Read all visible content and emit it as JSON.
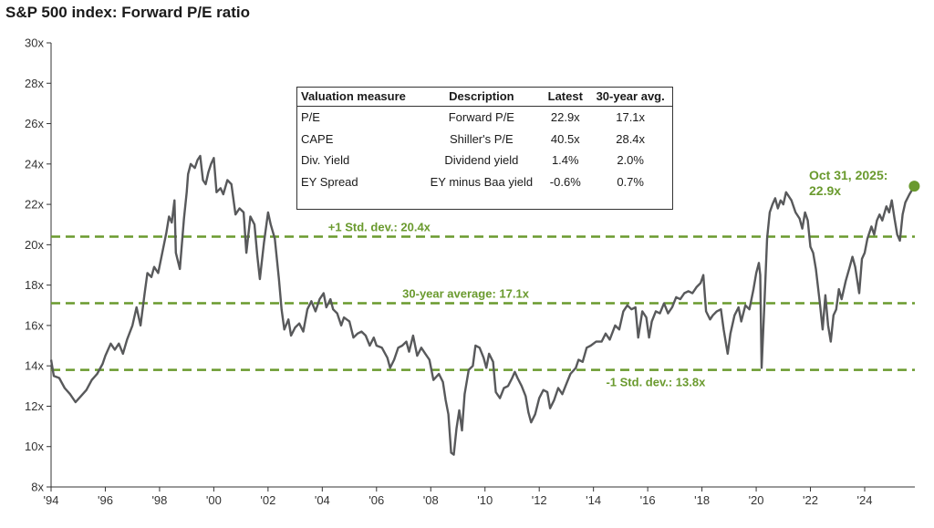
{
  "title": "S&P 500 index: Forward P/E ratio",
  "table": {
    "headers": [
      "Valuation measure",
      "Description",
      "Latest",
      "30-year avg."
    ],
    "rows": [
      [
        "P/E",
        "Forward P/E",
        "22.9x",
        "17.1x"
      ],
      [
        "CAPE",
        "Shiller's P/E",
        "40.5x",
        "28.4x"
      ],
      [
        "Div. Yield",
        "Dividend yield",
        "1.4%",
        "2.0%"
      ],
      [
        "EY Spread",
        "EY minus Baa yield",
        "-0.6%",
        "0.7%"
      ]
    ]
  },
  "callout": {
    "line1": "Oct 31, 2025:",
    "line2": "22.9x"
  },
  "colors": {
    "series": "#58595b",
    "reference": "#6a9a2e",
    "axis": "#333333"
  },
  "chart_data": {
    "type": "line",
    "title": "S&P 500 index: Forward P/E ratio",
    "xlim": [
      1994,
      2025.85
    ],
    "ylim": [
      8,
      30
    ],
    "x_ticks": [
      1994,
      1996,
      1998,
      2000,
      2002,
      2004,
      2006,
      2008,
      2010,
      2012,
      2014,
      2016,
      2018,
      2020,
      2022,
      2024
    ],
    "x_tick_labels": [
      "'94",
      "'96",
      "'98",
      "'00",
      "'02",
      "'04",
      "'06",
      "'08",
      "'10",
      "'12",
      "'14",
      "'16",
      "'18",
      "'20",
      "'22",
      "'24"
    ],
    "y_ticks": [
      8,
      10,
      12,
      14,
      16,
      18,
      20,
      22,
      24,
      26,
      28,
      30
    ],
    "y_tick_labels": [
      "8x",
      "10x",
      "12x",
      "14x",
      "16x",
      "18x",
      "20x",
      "22x",
      "24x",
      "26x",
      "28x",
      "30x"
    ],
    "grid": false,
    "reference_lines": [
      {
        "label": "+1 Std. dev.: 20.4x",
        "value": 20.4
      },
      {
        "label": "30-year average: 17.1x",
        "value": 17.1
      },
      {
        "label": "-1 Std. dev.: 13.8x",
        "value": 13.8
      }
    ],
    "series": [
      {
        "points": [
          [
            1994.0,
            14.3
          ],
          [
            1994.1,
            13.5
          ],
          [
            1994.3,
            13.4
          ],
          [
            1994.5,
            12.9
          ],
          [
            1994.7,
            12.6
          ],
          [
            1994.9,
            12.2
          ],
          [
            1995.1,
            12.5
          ],
          [
            1995.3,
            12.8
          ],
          [
            1995.5,
            13.3
          ],
          [
            1995.7,
            13.6
          ],
          [
            1995.9,
            14.1
          ],
          [
            1996.0,
            14.5
          ],
          [
            1996.2,
            15.1
          ],
          [
            1996.35,
            14.8
          ],
          [
            1996.5,
            15.1
          ],
          [
            1996.65,
            14.6
          ],
          [
            1996.8,
            15.3
          ],
          [
            1997.0,
            16.0
          ],
          [
            1997.15,
            16.9
          ],
          [
            1997.3,
            16.0
          ],
          [
            1997.45,
            17.6
          ],
          [
            1997.55,
            18.6
          ],
          [
            1997.7,
            18.4
          ],
          [
            1997.8,
            18.9
          ],
          [
            1997.95,
            18.6
          ],
          [
            1998.1,
            19.6
          ],
          [
            1998.25,
            20.6
          ],
          [
            1998.35,
            21.4
          ],
          [
            1998.45,
            21.1
          ],
          [
            1998.55,
            22.2
          ],
          [
            1998.6,
            19.6
          ],
          [
            1998.75,
            18.8
          ],
          [
            1998.9,
            21.3
          ],
          [
            1999.0,
            22.6
          ],
          [
            1999.05,
            23.5
          ],
          [
            1999.15,
            24.0
          ],
          [
            1999.3,
            23.8
          ],
          [
            1999.4,
            24.2
          ],
          [
            1999.5,
            24.4
          ],
          [
            1999.6,
            23.2
          ],
          [
            1999.7,
            23.0
          ],
          [
            1999.8,
            23.6
          ],
          [
            1999.9,
            24.0
          ],
          [
            2000.0,
            24.3
          ],
          [
            2000.1,
            22.6
          ],
          [
            2000.25,
            22.8
          ],
          [
            2000.35,
            22.5
          ],
          [
            2000.5,
            23.2
          ],
          [
            2000.65,
            23.0
          ],
          [
            2000.8,
            21.5
          ],
          [
            2000.95,
            21.8
          ],
          [
            2001.1,
            21.6
          ],
          [
            2001.2,
            19.6
          ],
          [
            2001.35,
            21.4
          ],
          [
            2001.5,
            21.0
          ],
          [
            2001.6,
            19.5
          ],
          [
            2001.7,
            18.3
          ],
          [
            2001.85,
            20.1
          ],
          [
            2002.0,
            21.6
          ],
          [
            2002.1,
            21.0
          ],
          [
            2002.25,
            20.3
          ],
          [
            2002.4,
            18.3
          ],
          [
            2002.5,
            16.8
          ],
          [
            2002.6,
            15.8
          ],
          [
            2002.75,
            16.3
          ],
          [
            2002.85,
            15.5
          ],
          [
            2003.0,
            15.9
          ],
          [
            2003.15,
            16.1
          ],
          [
            2003.3,
            15.7
          ],
          [
            2003.45,
            16.8
          ],
          [
            2003.6,
            17.2
          ],
          [
            2003.75,
            16.7
          ],
          [
            2003.9,
            17.3
          ],
          [
            2004.05,
            17.6
          ],
          [
            2004.15,
            16.9
          ],
          [
            2004.3,
            17.3
          ],
          [
            2004.4,
            16.8
          ],
          [
            2004.55,
            16.6
          ],
          [
            2004.7,
            16.0
          ],
          [
            2004.8,
            16.4
          ],
          [
            2005.0,
            16.2
          ],
          [
            2005.15,
            15.4
          ],
          [
            2005.3,
            15.6
          ],
          [
            2005.45,
            15.7
          ],
          [
            2005.6,
            15.5
          ],
          [
            2005.75,
            15.0
          ],
          [
            2005.9,
            15.4
          ],
          [
            2006.0,
            15.0
          ],
          [
            2006.2,
            14.9
          ],
          [
            2006.4,
            14.4
          ],
          [
            2006.5,
            13.9
          ],
          [
            2006.65,
            14.3
          ],
          [
            2006.8,
            14.9
          ],
          [
            2006.95,
            15.0
          ],
          [
            2007.1,
            15.2
          ],
          [
            2007.2,
            14.7
          ],
          [
            2007.35,
            15.5
          ],
          [
            2007.5,
            14.5
          ],
          [
            2007.65,
            14.9
          ],
          [
            2007.8,
            14.6
          ],
          [
            2007.95,
            14.3
          ],
          [
            2008.1,
            13.3
          ],
          [
            2008.3,
            13.6
          ],
          [
            2008.45,
            13.2
          ],
          [
            2008.55,
            12.3
          ],
          [
            2008.65,
            11.6
          ],
          [
            2008.75,
            9.7
          ],
          [
            2008.85,
            9.6
          ],
          [
            2008.95,
            10.9
          ],
          [
            2009.05,
            11.8
          ],
          [
            2009.15,
            10.8
          ],
          [
            2009.25,
            12.6
          ],
          [
            2009.4,
            13.8
          ],
          [
            2009.55,
            14.0
          ],
          [
            2009.65,
            15.0
          ],
          [
            2009.8,
            14.9
          ],
          [
            2009.95,
            14.4
          ],
          [
            2010.05,
            13.9
          ],
          [
            2010.15,
            14.6
          ],
          [
            2010.3,
            14.2
          ],
          [
            2010.4,
            12.7
          ],
          [
            2010.55,
            12.4
          ],
          [
            2010.7,
            12.9
          ],
          [
            2010.85,
            13.0
          ],
          [
            2011.0,
            13.4
          ],
          [
            2011.1,
            13.7
          ],
          [
            2011.2,
            13.4
          ],
          [
            2011.35,
            13.0
          ],
          [
            2011.5,
            12.5
          ],
          [
            2011.6,
            11.7
          ],
          [
            2011.7,
            11.2
          ],
          [
            2011.85,
            11.6
          ],
          [
            2012.0,
            12.4
          ],
          [
            2012.15,
            12.8
          ],
          [
            2012.3,
            12.7
          ],
          [
            2012.4,
            11.9
          ],
          [
            2012.55,
            12.3
          ],
          [
            2012.7,
            12.9
          ],
          [
            2012.85,
            12.6
          ],
          [
            2013.0,
            13.1
          ],
          [
            2013.15,
            13.6
          ],
          [
            2013.35,
            13.9
          ],
          [
            2013.45,
            14.3
          ],
          [
            2013.6,
            14.2
          ],
          [
            2013.75,
            14.9
          ],
          [
            2013.9,
            15.0
          ],
          [
            2014.1,
            15.2
          ],
          [
            2014.3,
            15.2
          ],
          [
            2014.45,
            15.6
          ],
          [
            2014.6,
            15.3
          ],
          [
            2014.8,
            16.0
          ],
          [
            2014.95,
            15.8
          ],
          [
            2015.1,
            16.7
          ],
          [
            2015.25,
            17.0
          ],
          [
            2015.4,
            16.8
          ],
          [
            2015.55,
            16.9
          ],
          [
            2015.65,
            15.4
          ],
          [
            2015.8,
            16.7
          ],
          [
            2015.95,
            16.4
          ],
          [
            2016.05,
            15.4
          ],
          [
            2016.15,
            16.2
          ],
          [
            2016.3,
            16.7
          ],
          [
            2016.45,
            16.6
          ],
          [
            2016.6,
            17.1
          ],
          [
            2016.75,
            16.6
          ],
          [
            2016.9,
            16.9
          ],
          [
            2017.05,
            17.4
          ],
          [
            2017.2,
            17.3
          ],
          [
            2017.35,
            17.6
          ],
          [
            2017.5,
            17.7
          ],
          [
            2017.65,
            17.6
          ],
          [
            2017.8,
            17.9
          ],
          [
            2017.95,
            18.1
          ],
          [
            2018.05,
            18.5
          ],
          [
            2018.15,
            16.7
          ],
          [
            2018.3,
            16.3
          ],
          [
            2018.4,
            16.5
          ],
          [
            2018.55,
            16.7
          ],
          [
            2018.7,
            16.8
          ],
          [
            2018.8,
            15.8
          ],
          [
            2018.95,
            14.6
          ],
          [
            2019.05,
            15.6
          ],
          [
            2019.2,
            16.5
          ],
          [
            2019.35,
            16.9
          ],
          [
            2019.45,
            16.2
          ],
          [
            2019.6,
            17.0
          ],
          [
            2019.75,
            16.8
          ],
          [
            2019.9,
            17.8
          ],
          [
            2020.0,
            18.6
          ],
          [
            2020.1,
            19.1
          ],
          [
            2020.15,
            18.5
          ],
          [
            2020.2,
            13.9
          ],
          [
            2020.3,
            17.0
          ],
          [
            2020.4,
            20.3
          ],
          [
            2020.5,
            21.6
          ],
          [
            2020.6,
            22.0
          ],
          [
            2020.7,
            22.3
          ],
          [
            2020.8,
            21.8
          ],
          [
            2020.9,
            22.2
          ],
          [
            2021.0,
            22.0
          ],
          [
            2021.1,
            22.6
          ],
          [
            2021.3,
            22.2
          ],
          [
            2021.45,
            21.6
          ],
          [
            2021.6,
            21.3
          ],
          [
            2021.7,
            20.8
          ],
          [
            2021.8,
            21.6
          ],
          [
            2021.9,
            21.2
          ],
          [
            2022.0,
            19.9
          ],
          [
            2022.1,
            19.6
          ],
          [
            2022.2,
            18.8
          ],
          [
            2022.35,
            17.1
          ],
          [
            2022.45,
            15.8
          ],
          [
            2022.55,
            17.5
          ],
          [
            2022.65,
            16.0
          ],
          [
            2022.75,
            15.2
          ],
          [
            2022.85,
            16.5
          ],
          [
            2022.95,
            16.8
          ],
          [
            2023.05,
            17.8
          ],
          [
            2023.15,
            17.3
          ],
          [
            2023.3,
            18.2
          ],
          [
            2023.45,
            18.9
          ],
          [
            2023.55,
            19.4
          ],
          [
            2023.65,
            18.9
          ],
          [
            2023.8,
            17.6
          ],
          [
            2023.9,
            19.3
          ],
          [
            2024.0,
            19.6
          ],
          [
            2024.1,
            20.3
          ],
          [
            2024.25,
            20.9
          ],
          [
            2024.35,
            20.5
          ],
          [
            2024.45,
            21.2
          ],
          [
            2024.55,
            21.5
          ],
          [
            2024.65,
            21.2
          ],
          [
            2024.8,
            21.9
          ],
          [
            2024.9,
            21.6
          ],
          [
            2025.0,
            22.2
          ],
          [
            2025.1,
            21.3
          ],
          [
            2025.2,
            20.5
          ],
          [
            2025.3,
            20.2
          ],
          [
            2025.4,
            21.5
          ],
          [
            2025.5,
            22.1
          ],
          [
            2025.65,
            22.5
          ],
          [
            2025.83,
            22.9
          ]
        ]
      }
    ],
    "annotations": [
      {
        "text": "Oct 31, 2025: 22.9x",
        "x": 2025.83,
        "y": 22.9
      }
    ]
  }
}
